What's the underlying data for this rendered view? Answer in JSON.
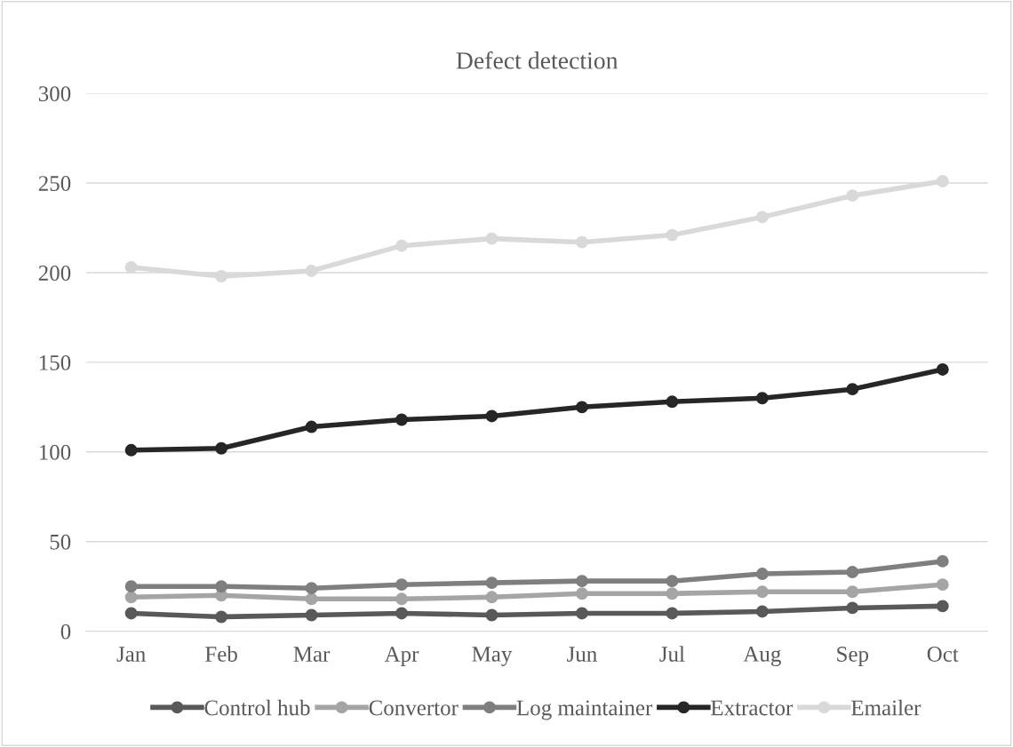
{
  "chart_data": {
    "type": "line",
    "title": "Defect detection",
    "categories": [
      "Jan",
      "Feb",
      "Mar",
      "Apr",
      "May",
      "Jun",
      "Jul",
      "Aug",
      "Sep",
      "Oct"
    ],
    "series": [
      {
        "name": "Control hub",
        "color": "#595959",
        "values": [
          10,
          8,
          9,
          10,
          9,
          10,
          10,
          11,
          13,
          14
        ]
      },
      {
        "name": "Convertor",
        "color": "#a5a5a5",
        "values": [
          19,
          20,
          18,
          18,
          19,
          21,
          21,
          22,
          22,
          26
        ]
      },
      {
        "name": "Log maintainer",
        "color": "#7f7f7f",
        "values": [
          25,
          25,
          24,
          26,
          27,
          28,
          28,
          32,
          33,
          39
        ]
      },
      {
        "name": "Extractor",
        "color": "#262626",
        "values": [
          101,
          102,
          114,
          118,
          120,
          125,
          128,
          130,
          135,
          146
        ]
      },
      {
        "name": "Emailer",
        "color": "#d9d9d9",
        "values": [
          203,
          198,
          201,
          215,
          219,
          217,
          221,
          231,
          243,
          251
        ]
      }
    ],
    "ylim": [
      0,
      300
    ],
    "yticks": [
      0,
      50,
      100,
      150,
      200,
      250,
      300
    ],
    "grid": "y",
    "legend": "bottom",
    "marker": "circle",
    "line_style": "solid"
  }
}
